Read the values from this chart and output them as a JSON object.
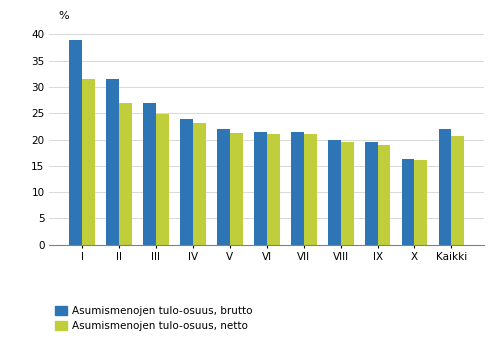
{
  "categories": [
    "I",
    "II",
    "III",
    "IV",
    "V",
    "VI",
    "VII",
    "VIII",
    "IX",
    "X",
    "Kaikki"
  ],
  "brutto": [
    39.0,
    31.5,
    27.0,
    24.0,
    22.0,
    21.5,
    21.5,
    20.0,
    19.5,
    16.3,
    22.0
  ],
  "netto": [
    31.5,
    27.0,
    24.9,
    23.2,
    21.3,
    21.0,
    21.1,
    19.6,
    19.0,
    16.1,
    20.7
  ],
  "color_brutto": "#2E75B6",
  "color_netto": "#BFCE3A",
  "ylabel": "%",
  "ylim": [
    0,
    42
  ],
  "yticks": [
    0,
    5,
    10,
    15,
    20,
    25,
    30,
    35,
    40
  ],
  "legend_brutto": "Asumismenojen tulo-osuus, brutto",
  "legend_netto": "Asumismenojen tulo-osuus, netto",
  "bar_width": 0.35,
  "figsize": [
    4.94,
    3.4
  ],
  "dpi": 100
}
